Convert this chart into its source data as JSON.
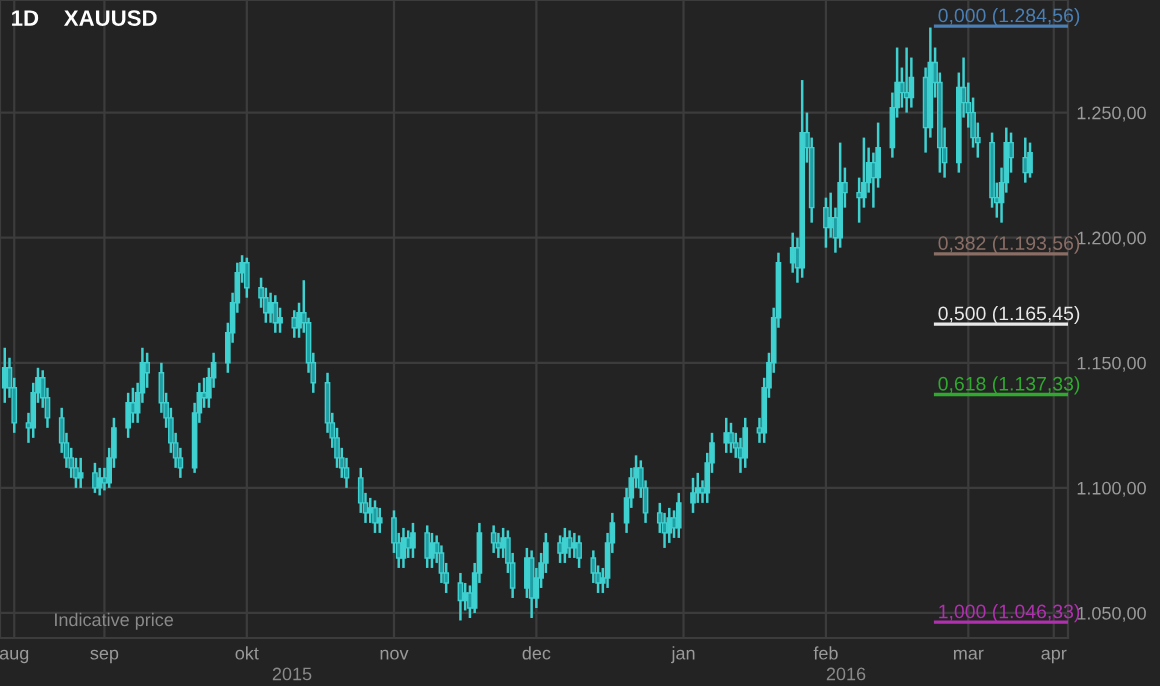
{
  "chart_data": {
    "type": "candlestick",
    "title": "1D    XAUUSD",
    "annotations": [
      "Indicative price",
      "2015",
      "2016"
    ],
    "x": [
      "2015-08-26",
      "2015-08-27",
      "2015-08-28",
      "2015-08-31",
      "2015-09-01",
      "2015-09-02",
      "2015-09-03",
      "2015-09-04",
      "2015-09-07",
      "2015-09-08",
      "2015-09-09",
      "2015-09-10",
      "2015-09-11",
      "2015-09-14",
      "2015-09-15",
      "2015-09-16",
      "2015-09-17",
      "2015-09-18",
      "2015-09-21",
      "2015-09-22",
      "2015-09-23",
      "2015-09-24",
      "2015-09-25",
      "2015-09-28",
      "2015-09-29",
      "2015-09-30",
      "2015-10-01",
      "2015-10-02",
      "2015-10-05",
      "2015-10-06",
      "2015-10-07",
      "2015-10-08",
      "2015-10-09",
      "2015-10-12",
      "2015-10-13",
      "2015-10-14",
      "2015-10-15",
      "2015-10-16",
      "2015-10-19",
      "2015-10-20",
      "2015-10-21",
      "2015-10-22",
      "2015-10-23",
      "2015-10-26",
      "2015-10-27",
      "2015-10-28",
      "2015-10-29",
      "2015-10-30",
      "2015-11-02",
      "2015-11-03",
      "2015-11-04",
      "2015-11-05",
      "2015-11-06",
      "2015-11-09",
      "2015-11-10",
      "2015-11-11",
      "2015-11-12",
      "2015-11-13",
      "2015-11-16",
      "2015-11-17",
      "2015-11-18",
      "2015-11-19",
      "2015-11-20",
      "2015-11-23",
      "2015-11-24",
      "2015-11-25",
      "2015-11-26",
      "2015-11-27",
      "2015-11-30",
      "2015-12-01",
      "2015-12-02",
      "2015-12-03",
      "2015-12-04",
      "2015-12-07",
      "2015-12-08",
      "2015-12-09",
      "2015-12-10",
      "2015-12-11",
      "2015-12-14",
      "2015-12-15",
      "2015-12-16",
      "2015-12-17",
      "2015-12-18",
      "2015-12-21",
      "2015-12-22",
      "2015-12-23",
      "2015-12-24",
      "2015-12-25",
      "2015-12-28",
      "2015-12-29",
      "2015-12-30",
      "2015-12-31",
      "2016-01-01",
      "2016-01-04",
      "2016-01-05",
      "2016-01-06",
      "2016-01-07",
      "2016-01-08",
      "2016-01-11",
      "2016-01-12",
      "2016-01-13",
      "2016-01-14",
      "2016-01-15",
      "2016-01-18",
      "2016-01-19",
      "2016-01-20",
      "2016-01-21",
      "2016-01-22",
      "2016-01-25",
      "2016-01-26",
      "2016-01-27",
      "2016-01-28",
      "2016-01-29",
      "2016-02-01",
      "2016-02-02",
      "2016-02-03",
      "2016-02-04",
      "2016-02-05",
      "2016-02-08",
      "2016-02-09",
      "2016-02-10",
      "2016-02-11",
      "2016-02-12",
      "2016-02-15",
      "2016-02-16",
      "2016-02-17",
      "2016-02-18",
      "2016-02-19",
      "2016-02-22",
      "2016-02-23",
      "2016-02-24",
      "2016-02-25",
      "2016-02-26",
      "2016-02-29",
      "2016-03-01",
      "2016-03-02",
      "2016-03-03",
      "2016-03-04",
      "2016-03-07",
      "2016-03-08",
      "2016-03-09",
      "2016-03-10",
      "2016-03-11",
      "2016-03-14",
      "2016-03-15",
      "2016-03-16",
      "2016-03-17",
      "2016-03-18",
      "2016-03-21",
      "2016-03-22",
      "2016-03-23",
      "2016-03-24",
      "2016-03-25",
      "2016-03-28",
      "2016-03-29"
    ],
    "ohlc": [
      [
        1140,
        1156,
        1134,
        1148
      ],
      [
        1148,
        1152,
        1136,
        1140
      ],
      [
        1140,
        1144,
        1122,
        1126
      ],
      [
        1126,
        1130,
        1118,
        1124
      ],
      [
        1124,
        1142,
        1120,
        1138
      ],
      [
        1138,
        1148,
        1134,
        1144
      ],
      [
        1144,
        1147,
        1132,
        1136
      ],
      [
        1136,
        1140,
        1124,
        1128
      ],
      [
        1128,
        1132,
        1114,
        1118
      ],
      [
        1118,
        1122,
        1108,
        1112
      ],
      [
        1112,
        1116,
        1104,
        1108
      ],
      [
        1108,
        1112,
        1100,
        1104
      ],
      [
        1104,
        1112,
        1100,
        1106
      ],
      [
        1106,
        1110,
        1098,
        1100
      ],
      [
        1100,
        1108,
        1097,
        1104
      ],
      [
        1104,
        1108,
        1099,
        1102
      ],
      [
        1102,
        1116,
        1100,
        1112
      ],
      [
        1112,
        1128,
        1108,
        1124
      ],
      [
        1124,
        1138,
        1120,
        1134
      ],
      [
        1134,
        1140,
        1126,
        1130
      ],
      [
        1130,
        1142,
        1126,
        1138
      ],
      [
        1138,
        1156,
        1134,
        1150
      ],
      [
        1150,
        1154,
        1140,
        1146
      ],
      [
        1146,
        1150,
        1130,
        1134
      ],
      [
        1134,
        1138,
        1124,
        1128
      ],
      [
        1128,
        1132,
        1114,
        1118
      ],
      [
        1118,
        1122,
        1108,
        1112
      ],
      [
        1112,
        1116,
        1104,
        1108
      ],
      [
        1108,
        1134,
        1106,
        1130
      ],
      [
        1130,
        1142,
        1126,
        1138
      ],
      [
        1138,
        1144,
        1132,
        1136
      ],
      [
        1136,
        1148,
        1132,
        1144
      ],
      [
        1144,
        1154,
        1140,
        1150
      ],
      [
        1150,
        1166,
        1146,
        1162
      ],
      [
        1162,
        1178,
        1158,
        1174
      ],
      [
        1174,
        1190,
        1170,
        1186
      ],
      [
        1186,
        1193,
        1182,
        1190
      ],
      [
        1190,
        1192,
        1176,
        1180
      ],
      [
        1180,
        1184,
        1172,
        1176
      ],
      [
        1176,
        1180,
        1166,
        1170
      ],
      [
        1170,
        1178,
        1166,
        1174
      ],
      [
        1174,
        1177,
        1162,
        1166
      ],
      [
        1166,
        1172,
        1162,
        1168
      ],
      [
        1168,
        1171,
        1160,
        1164
      ],
      [
        1164,
        1174,
        1160,
        1170
      ],
      [
        1170,
        1183,
        1162,
        1166
      ],
      [
        1166,
        1168,
        1146,
        1150
      ],
      [
        1150,
        1154,
        1138,
        1142
      ],
      [
        1142,
        1146,
        1122,
        1126
      ],
      [
        1126,
        1130,
        1116,
        1120
      ],
      [
        1120,
        1124,
        1108,
        1112
      ],
      [
        1112,
        1116,
        1104,
        1108
      ],
      [
        1108,
        1112,
        1100,
        1104
      ],
      [
        1104,
        1108,
        1090,
        1094
      ],
      [
        1094,
        1098,
        1086,
        1090
      ],
      [
        1090,
        1096,
        1086,
        1092
      ],
      [
        1092,
        1095,
        1082,
        1086
      ],
      [
        1086,
        1092,
        1082,
        1088
      ],
      [
        1088,
        1091,
        1074,
        1078
      ],
      [
        1078,
        1082,
        1068,
        1072
      ],
      [
        1072,
        1084,
        1068,
        1080
      ],
      [
        1080,
        1083,
        1072,
        1076
      ],
      [
        1076,
        1086,
        1072,
        1082
      ],
      [
        1082,
        1085,
        1068,
        1072
      ],
      [
        1072,
        1082,
        1068,
        1078
      ],
      [
        1078,
        1081,
        1070,
        1074
      ],
      [
        1074,
        1077,
        1062,
        1066
      ],
      [
        1066,
        1070,
        1058,
        1062
      ],
      [
        1062,
        1066,
        1047,
        1055
      ],
      [
        1055,
        1062,
        1051,
        1058
      ],
      [
        1058,
        1061,
        1048,
        1052
      ],
      [
        1052,
        1070,
        1050,
        1066
      ],
      [
        1066,
        1086,
        1062,
        1082
      ],
      [
        1082,
        1085,
        1074,
        1078
      ],
      [
        1078,
        1082,
        1072,
        1076
      ],
      [
        1076,
        1084,
        1072,
        1080
      ],
      [
        1080,
        1083,
        1066,
        1070
      ],
      [
        1070,
        1074,
        1056,
        1060
      ],
      [
        1060,
        1076,
        1056,
        1072
      ],
      [
        1072,
        1075,
        1048,
        1056
      ],
      [
        1056,
        1068,
        1052,
        1064
      ],
      [
        1064,
        1074,
        1060,
        1070
      ],
      [
        1070,
        1082,
        1066,
        1078
      ],
      [
        1078,
        1081,
        1070,
        1074
      ],
      [
        1074,
        1084,
        1070,
        1080
      ],
      [
        1080,
        1083,
        1072,
        1076
      ],
      [
        1076,
        1082,
        1072,
        1078
      ],
      [
        1078,
        1081,
        1068,
        1072
      ],
      [
        1072,
        1075,
        1062,
        1066
      ],
      [
        1066,
        1069,
        1058,
        1062
      ],
      [
        1062,
        1068,
        1058,
        1064
      ],
      [
        1064,
        1082,
        1060,
        1078
      ],
      [
        1078,
        1090,
        1074,
        1086
      ],
      [
        1086,
        1100,
        1082,
        1096
      ],
      [
        1096,
        1108,
        1092,
        1104
      ],
      [
        1104,
        1113,
        1100,
        1108
      ],
      [
        1108,
        1111,
        1096,
        1100
      ],
      [
        1100,
        1103,
        1086,
        1090
      ],
      [
        1090,
        1094,
        1082,
        1086
      ],
      [
        1086,
        1090,
        1076,
        1082
      ],
      [
        1082,
        1092,
        1078,
        1088
      ],
      [
        1088,
        1091,
        1080,
        1084
      ],
      [
        1084,
        1098,
        1080,
        1094
      ],
      [
        1094,
        1104,
        1090,
        1098
      ],
      [
        1098,
        1106,
        1094,
        1100
      ],
      [
        1100,
        1103,
        1094,
        1098
      ],
      [
        1098,
        1114,
        1094,
        1110
      ],
      [
        1110,
        1122,
        1106,
        1118
      ],
      [
        1118,
        1128,
        1114,
        1122
      ],
      [
        1122,
        1126,
        1114,
        1118
      ],
      [
        1118,
        1122,
        1112,
        1116
      ],
      [
        1116,
        1120,
        1106,
        1112
      ],
      [
        1112,
        1128,
        1108,
        1124
      ],
      [
        1124,
        1128,
        1118,
        1122
      ],
      [
        1122,
        1144,
        1118,
        1140
      ],
      [
        1140,
        1154,
        1136,
        1150
      ],
      [
        1150,
        1172,
        1146,
        1168
      ],
      [
        1168,
        1194,
        1164,
        1190
      ],
      [
        1190,
        1202,
        1186,
        1196
      ],
      [
        1196,
        1200,
        1182,
        1188
      ],
      [
        1188,
        1263,
        1184,
        1242
      ],
      [
        1242,
        1250,
        1230,
        1236
      ],
      [
        1236,
        1240,
        1206,
        1212
      ],
      [
        1212,
        1216,
        1196,
        1204
      ],
      [
        1204,
        1218,
        1200,
        1208
      ],
      [
        1208,
        1212,
        1194,
        1200
      ],
      [
        1200,
        1238,
        1196,
        1222
      ],
      [
        1222,
        1228,
        1212,
        1218
      ],
      [
        1218,
        1224,
        1206,
        1216
      ],
      [
        1216,
        1240,
        1212,
        1222
      ],
      [
        1222,
        1236,
        1218,
        1230
      ],
      [
        1230,
        1234,
        1212,
        1224
      ],
      [
        1224,
        1246,
        1220,
        1236
      ],
      [
        1236,
        1258,
        1232,
        1252
      ],
      [
        1252,
        1276,
        1248,
        1262
      ],
      [
        1262,
        1268,
        1252,
        1258
      ],
      [
        1258,
        1276,
        1250,
        1256
      ],
      [
        1256,
        1272,
        1252,
        1264
      ],
      [
        1264,
        1268,
        1234,
        1244
      ],
      [
        1244,
        1284,
        1240,
        1270
      ],
      [
        1270,
        1276,
        1256,
        1262
      ],
      [
        1262,
        1266,
        1226,
        1236
      ],
      [
        1236,
        1244,
        1224,
        1230
      ],
      [
        1230,
        1266,
        1226,
        1260
      ],
      [
        1260,
        1272,
        1248,
        1254
      ],
      [
        1254,
        1262,
        1244,
        1250
      ],
      [
        1250,
        1256,
        1236,
        1240
      ],
      [
        1240,
        1246,
        1232,
        1238
      ],
      [
        1238,
        1242,
        1212,
        1216
      ],
      [
        1216,
        1222,
        1208,
        1214
      ],
      [
        1214,
        1228,
        1206,
        1222
      ],
      [
        1222,
        1244,
        1218,
        1238
      ],
      [
        1238,
        1242,
        1226,
        1232
      ],
      [
        1232,
        1240,
        1222,
        1226
      ],
      [
        1226,
        1238,
        1224,
        1234
      ]
    ],
    "color": "#3fd0d0",
    "xlim": [
      "2015-08-25",
      "2016-04-06"
    ],
    "xticks": [
      {
        "value": "2015-08-28",
        "label": "aug"
      },
      {
        "value": "2015-09-16",
        "label": "sep"
      },
      {
        "value": "2015-10-16",
        "label": "okt"
      },
      {
        "value": "2015-11-16",
        "label": "nov"
      },
      {
        "value": "2015-12-16",
        "label": "dec"
      },
      {
        "value": "2016-01-16",
        "label": "jan"
      },
      {
        "value": "2016-02-15",
        "label": "feb"
      },
      {
        "value": "2016-03-16",
        "label": "mar"
      },
      {
        "value": "2016-04-03",
        "label": "apr"
      }
    ],
    "ylim": [
      1040,
      1295
    ],
    "yticks": [
      {
        "value": 1050,
        "label": "1.050,00"
      },
      {
        "value": 1100,
        "label": "1.100,00"
      },
      {
        "value": 1150,
        "label": "1.150,00"
      },
      {
        "value": 1200,
        "label": "1.200,00"
      },
      {
        "value": 1250,
        "label": "1.250,00"
      }
    ],
    "grid": true,
    "ref_lines": [
      {
        "axis": "y",
        "value": 1284.56,
        "label": "0,000 (1.284,56)",
        "color": "#4a7fb5"
      },
      {
        "axis": "y",
        "value": 1193.56,
        "label": "0,382 (1.193,56)",
        "color": "#8a6e66"
      },
      {
        "axis": "y",
        "value": 1165.45,
        "label": "0,500 (1.165,45)",
        "color": "#e8e8e8"
      },
      {
        "axis": "y",
        "value": 1137.33,
        "label": "0,618 (1.137,33)",
        "color": "#2faa2f"
      },
      {
        "axis": "y",
        "value": 1046.33,
        "label": "1,000 (1.046,33)",
        "color": "#b030b0"
      }
    ]
  }
}
